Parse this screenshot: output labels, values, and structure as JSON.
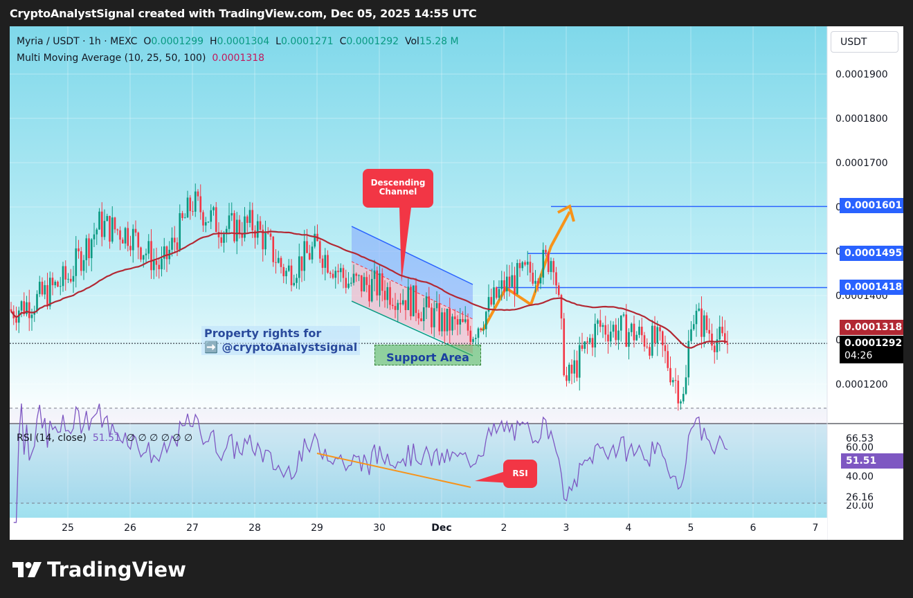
{
  "header": {
    "title": "CryptoAnalystSignal created with TradingView.com, Dec 05, 2025 14:55 UTC"
  },
  "legend": {
    "symbol": "Myria / USDT · 1h · MEXC",
    "o_label": "O",
    "o_value": "0.0001299",
    "h_label": "H",
    "h_value": "0.0001304",
    "l_label": "L",
    "l_value": "0.0001271",
    "c_label": "C",
    "c_value": "0.0001292",
    "vol_label": "Vol",
    "vol_value": "15.28 M",
    "ma_name": "Multi Moving Average (10, 25, 50, 100)",
    "ma_value": "0.0001318"
  },
  "currency_button": "USDT",
  "rsi_legend": {
    "name": "RSI (14, close)",
    "value": "51.51",
    "placeholders": "∅ ∅ ∅ ∅ ∅ ∅"
  },
  "annotations": {
    "property_line1": "Property rights for",
    "property_line2": "➡️ @cryptoAnalystsignal",
    "support_area": "Support Area",
    "channel_callout": "Descending Channel",
    "rsi_callout": "RSI"
  },
  "price_labels": {
    "level_1601": "0.0001601",
    "level_1495": "0.0001495",
    "level_1418": "0.0001418",
    "ma": "0.0001318",
    "last": "0.0001292",
    "countdown": "04:26"
  },
  "rsi_labels": {
    "upper": "66.53",
    "sixty": "60.00",
    "current": "51.51",
    "forty": "40.00",
    "lower": "26.16",
    "twenty": "20.00"
  },
  "logo_text": "TradingView",
  "colors": {
    "up": "#089981",
    "down": "#f23645",
    "ma": "#b22833",
    "hline": "#2962ff",
    "rsi": "#7e57c2",
    "arrow": "#f7931a"
  },
  "chart_data": {
    "type": "candlestick",
    "title": "Myria / USDT · 1h · MEXC",
    "price_axis": {
      "ticks": [
        0.00012,
        0.00013,
        0.00014,
        0.00015,
        0.00016,
        0.00017,
        0.00018,
        0.00019
      ],
      "tick_labels": [
        "0.0001200",
        "0.0001300",
        "0.0001400",
        "0.0001500",
        "0.0001600",
        "0.0001700",
        "0.0001800",
        "0.0001900"
      ],
      "ylim": [
        0.0001112,
        0.0002
      ],
      "grid": true
    },
    "x_axis": {
      "labels": [
        "25",
        "26",
        "27",
        "28",
        "29",
        "30",
        "Dec",
        "2",
        "3",
        "4",
        "5",
        "6",
        "7"
      ]
    },
    "moving_average_last": 0.0001318,
    "horizontal_levels": [
      0.0001601,
      0.0001495,
      0.0001418
    ],
    "last_close": 0.0001292,
    "close_path": [
      {
        "day": "24",
        "close": 0.000136
      },
      {
        "day": "24.5",
        "close": 0.000139
      },
      {
        "day": "25",
        "close": 0.000144
      },
      {
        "day": "25.5",
        "close": 0.000156
      },
      {
        "day": "26",
        "close": 0.000154
      },
      {
        "day": "26.5",
        "close": 0.000146
      },
      {
        "day": "27",
        "close": 0.000161
      },
      {
        "day": "27.5",
        "close": 0.000155
      },
      {
        "day": "28",
        "close": 0.000156
      },
      {
        "day": "28.5",
        "close": 0.000145
      },
      {
        "day": "29",
        "close": 0.000151
      },
      {
        "day": "29.5",
        "close": 0.000143
      },
      {
        "day": "30",
        "close": 0.000142
      },
      {
        "day": "30.5",
        "close": 0.000139
      },
      {
        "day": "Dec 1",
        "close": 0.000134
      },
      {
        "day": "1.5",
        "close": 0.000132
      },
      {
        "day": "2",
        "close": 0.000142
      },
      {
        "day": "2.5",
        "close": 0.000146
      },
      {
        "day": "2.8",
        "close": 0.000149
      },
      {
        "day": "3",
        "close": 0.00012
      },
      {
        "day": "3.5",
        "close": 0.000133
      },
      {
        "day": "4",
        "close": 0.000132
      },
      {
        "day": "4.5",
        "close": 0.000129
      },
      {
        "day": "4.9",
        "close": 0.000116
      },
      {
        "day": "5",
        "close": 0.000136
      },
      {
        "day": "5.5",
        "close": 0.0001292
      }
    ],
    "rsi": {
      "period": 14,
      "last": 51.51,
      "levels": [
        66.53,
        26.16
      ],
      "axis_ticks": [
        20,
        40,
        60
      ]
    }
  }
}
